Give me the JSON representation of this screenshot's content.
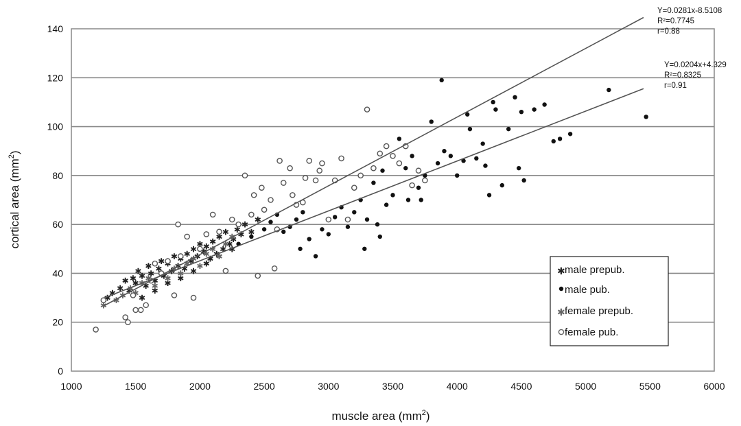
{
  "chart_data": {
    "type": "scatter",
    "xlabel": "muscle area (mm",
    "xlabel_sup": "2",
    "xlabel_end": ")",
    "ylabel": "cortical area (mm",
    "ylabel_sup": "2",
    "ylabel_end": ")",
    "xlim": [
      1000,
      6000
    ],
    "ylim": [
      0,
      140
    ],
    "grid": "horizontal",
    "x_ticks": [
      "1000",
      "1500",
      "2000",
      "2500",
      "3000",
      "3500",
      "4000",
      "4500",
      "5000",
      "5500",
      "6000"
    ],
    "y_ticks": [
      "0",
      "20",
      "40",
      "60",
      "80",
      "100",
      "120",
      "140"
    ],
    "legend_position": "bottom-right",
    "legend": [
      "male prepub.",
      "male pub.",
      "female prepub.",
      "female pub."
    ],
    "series": [
      {
        "name": "male prepub.",
        "marker": "star",
        "color": "#222222",
        "points": [
          [
            1280,
            30
          ],
          [
            1320,
            32
          ],
          [
            1380,
            34
          ],
          [
            1420,
            37
          ],
          [
            1450,
            33
          ],
          [
            1480,
            38
          ],
          [
            1500,
            36
          ],
          [
            1520,
            41
          ],
          [
            1550,
            39
          ],
          [
            1580,
            35
          ],
          [
            1600,
            43
          ],
          [
            1620,
            40
          ],
          [
            1650,
            37
          ],
          [
            1680,
            42
          ],
          [
            1700,
            45
          ],
          [
            1720,
            39
          ],
          [
            1750,
            44
          ],
          [
            1780,
            41
          ],
          [
            1800,
            47
          ],
          [
            1830,
            43
          ],
          [
            1850,
            46
          ],
          [
            1880,
            42
          ],
          [
            1900,
            48
          ],
          [
            1930,
            45
          ],
          [
            1950,
            50
          ],
          [
            1980,
            47
          ],
          [
            2000,
            52
          ],
          [
            2030,
            49
          ],
          [
            2050,
            51
          ],
          [
            2080,
            46
          ],
          [
            2100,
            53
          ],
          [
            2130,
            48
          ],
          [
            2150,
            55
          ],
          [
            2180,
            50
          ],
          [
            2200,
            57
          ],
          [
            2230,
            52
          ],
          [
            2260,
            54
          ],
          [
            2290,
            58
          ],
          [
            2320,
            56
          ],
          [
            2350,
            60
          ],
          [
            2400,
            57
          ],
          [
            2450,
            62
          ],
          [
            1550,
            30
          ],
          [
            1650,
            33
          ],
          [
            1750,
            36
          ],
          [
            1850,
            38
          ],
          [
            1950,
            41
          ],
          [
            2050,
            44
          ],
          [
            2150,
            47
          ],
          [
            2250,
            50
          ]
        ]
      },
      {
        "name": "male pub.",
        "marker": "dot",
        "color": "#111111",
        "points": [
          [
            2300,
            52
          ],
          [
            2400,
            55
          ],
          [
            2500,
            58
          ],
          [
            2550,
            61
          ],
          [
            2600,
            64
          ],
          [
            2650,
            57
          ],
          [
            2700,
            59
          ],
          [
            2750,
            62
          ],
          [
            2780,
            50
          ],
          [
            2800,
            65
          ],
          [
            2850,
            54
          ],
          [
            2900,
            47
          ],
          [
            2950,
            58
          ],
          [
            3000,
            56
          ],
          [
            3050,
            63
          ],
          [
            3100,
            67
          ],
          [
            3150,
            59
          ],
          [
            3200,
            65
          ],
          [
            3250,
            70
          ],
          [
            3280,
            50
          ],
          [
            3300,
            62
          ],
          [
            3350,
            77
          ],
          [
            3380,
            60
          ],
          [
            3400,
            55
          ],
          [
            3420,
            82
          ],
          [
            3450,
            68
          ],
          [
            3500,
            72
          ],
          [
            3550,
            95
          ],
          [
            3600,
            83
          ],
          [
            3620,
            70
          ],
          [
            3650,
            88
          ],
          [
            3700,
            75
          ],
          [
            3720,
            70
          ],
          [
            3750,
            80
          ],
          [
            3800,
            102
          ],
          [
            3850,
            85
          ],
          [
            3880,
            119
          ],
          [
            3900,
            90
          ],
          [
            3950,
            88
          ],
          [
            4000,
            80
          ],
          [
            4050,
            86
          ],
          [
            4080,
            105
          ],
          [
            4100,
            99
          ],
          [
            4150,
            87
          ],
          [
            4200,
            93
          ],
          [
            4220,
            84
          ],
          [
            4250,
            72
          ],
          [
            4280,
            110
          ],
          [
            4300,
            107
          ],
          [
            4350,
            76
          ],
          [
            4400,
            99
          ],
          [
            4450,
            112
          ],
          [
            4480,
            83
          ],
          [
            4500,
            106
          ],
          [
            4520,
            78
          ],
          [
            4600,
            107
          ],
          [
            4680,
            109
          ],
          [
            4750,
            94
          ],
          [
            4800,
            95
          ],
          [
            4880,
            97
          ],
          [
            5180,
            115
          ],
          [
            5470,
            104
          ]
        ]
      },
      {
        "name": "female prepub.",
        "marker": "star",
        "color": "#666666",
        "points": [
          [
            1250,
            27
          ],
          [
            1350,
            29
          ],
          [
            1400,
            31
          ],
          [
            1460,
            34
          ],
          [
            1500,
            32
          ],
          [
            1550,
            36
          ],
          [
            1600,
            38
          ],
          [
            1650,
            35
          ],
          [
            1700,
            40
          ],
          [
            1750,
            38
          ],
          [
            1800,
            42
          ],
          [
            1850,
            40
          ],
          [
            1900,
            44
          ],
          [
            1950,
            46
          ],
          [
            2000,
            43
          ],
          [
            2050,
            48
          ],
          [
            2100,
            50
          ],
          [
            2150,
            47
          ],
          [
            2200,
            52
          ],
          [
            2250,
            55
          ]
        ]
      },
      {
        "name": "female pub.",
        "marker": "ring",
        "color": "#555555",
        "points": [
          [
            1190,
            17
          ],
          [
            1250,
            29
          ],
          [
            1420,
            22
          ],
          [
            1440,
            20
          ],
          [
            1480,
            31
          ],
          [
            1500,
            25
          ],
          [
            1540,
            25
          ],
          [
            1580,
            27
          ],
          [
            1620,
            37
          ],
          [
            1650,
            44
          ],
          [
            1700,
            40
          ],
          [
            1750,
            45
          ],
          [
            1800,
            31
          ],
          [
            1830,
            60
          ],
          [
            1850,
            47
          ],
          [
            1900,
            55
          ],
          [
            1950,
            30
          ],
          [
            2000,
            50
          ],
          [
            2050,
            56
          ],
          [
            2100,
            64
          ],
          [
            2150,
            57
          ],
          [
            2200,
            41
          ],
          [
            2250,
            62
          ],
          [
            2300,
            60
          ],
          [
            2350,
            80
          ],
          [
            2400,
            64
          ],
          [
            2420,
            72
          ],
          [
            2450,
            39
          ],
          [
            2480,
            75
          ],
          [
            2500,
            66
          ],
          [
            2550,
            70
          ],
          [
            2580,
            42
          ],
          [
            2600,
            58
          ],
          [
            2620,
            86
          ],
          [
            2650,
            77
          ],
          [
            2700,
            83
          ],
          [
            2720,
            72
          ],
          [
            2750,
            68
          ],
          [
            2800,
            69
          ],
          [
            2820,
            79
          ],
          [
            2850,
            86
          ],
          [
            2900,
            78
          ],
          [
            2930,
            82
          ],
          [
            2950,
            85
          ],
          [
            3000,
            62
          ],
          [
            3050,
            78
          ],
          [
            3100,
            87
          ],
          [
            3150,
            62
          ],
          [
            3200,
            75
          ],
          [
            3250,
            80
          ],
          [
            3300,
            107
          ],
          [
            3350,
            83
          ],
          [
            3400,
            89
          ],
          [
            3450,
            92
          ],
          [
            3500,
            88
          ],
          [
            3550,
            85
          ],
          [
            3600,
            92
          ],
          [
            3650,
            76
          ],
          [
            3700,
            82
          ],
          [
            3750,
            78
          ]
        ]
      }
    ],
    "trendlines": [
      {
        "label": "upper",
        "slope": 0.0281,
        "intercept": -8.5108,
        "x_range": [
          1250,
          5450
        ],
        "text": [
          "Y=0.0281x-8.5108",
          "R²=0.7745",
          "r=0.88"
        ]
      },
      {
        "label": "lower",
        "slope": 0.0204,
        "intercept": 4.329,
        "x_range": [
          1250,
          5450
        ],
        "text": [
          "Y=0.0204x+4.329",
          "R²=0.8325",
          "r=0.91"
        ]
      }
    ]
  }
}
